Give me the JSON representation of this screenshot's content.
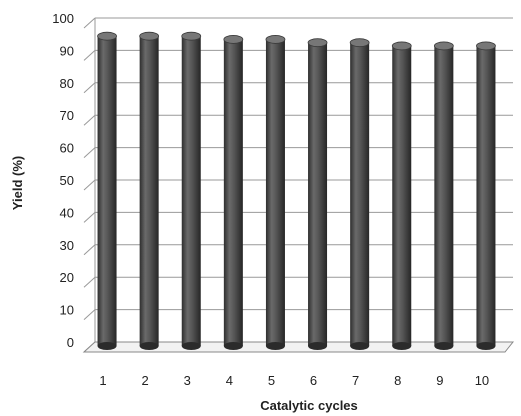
{
  "chart_data": {
    "type": "bar",
    "categories": [
      "1",
      "2",
      "3",
      "4",
      "5",
      "6",
      "7",
      "8",
      "9",
      "10"
    ],
    "series": [
      {
        "values": [
          95,
          95,
          95,
          94,
          94,
          93,
          93,
          92,
          92,
          92
        ]
      }
    ],
    "xlabel": "Catalytic cycles",
    "ylabel": "Yield (%)",
    "ylim": [
      0,
      100
    ],
    "yticks": [
      0,
      10,
      20,
      30,
      40,
      50,
      60,
      70,
      80,
      90,
      100
    ],
    "grid": true,
    "legend": "none",
    "colors": {
      "bar": "#555555",
      "bar_dark": "#3a3a3a",
      "grid": "#999999"
    }
  }
}
